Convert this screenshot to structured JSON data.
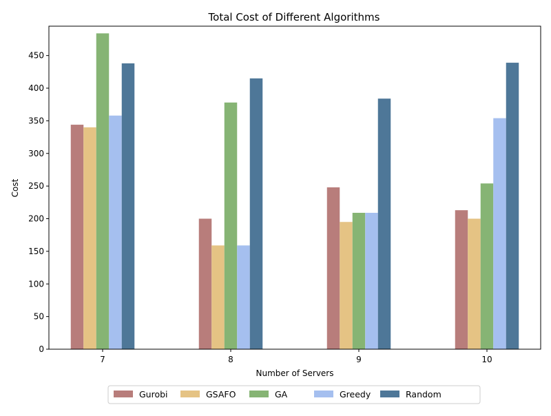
{
  "chart_data": {
    "type": "bar",
    "title": "Total Cost of Different Algorithms",
    "xlabel": "Number of Servers",
    "ylabel": "Cost",
    "categories": [
      "7",
      "8",
      "9",
      "10"
    ],
    "ylim": [
      0,
      495
    ],
    "yticks": [
      0,
      50,
      100,
      150,
      200,
      250,
      300,
      350,
      400,
      450
    ],
    "grid": false,
    "legend_position": "bottom-center",
    "series": [
      {
        "name": "Gurobi",
        "color": "#b87d7b",
        "values": [
          344,
          200,
          248,
          213
        ]
      },
      {
        "name": "GSAFO",
        "color": "#e5c384",
        "values": [
          340,
          159,
          195,
          200
        ]
      },
      {
        "name": "GA",
        "color": "#86b474",
        "values": [
          484,
          378,
          209,
          254
        ]
      },
      {
        "name": "Greedy",
        "color": "#a5bfef",
        "values": [
          358,
          159,
          209,
          354
        ]
      },
      {
        "name": "Random",
        "color": "#4e7798",
        "values": [
          438,
          415,
          384,
          439
        ]
      }
    ]
  }
}
